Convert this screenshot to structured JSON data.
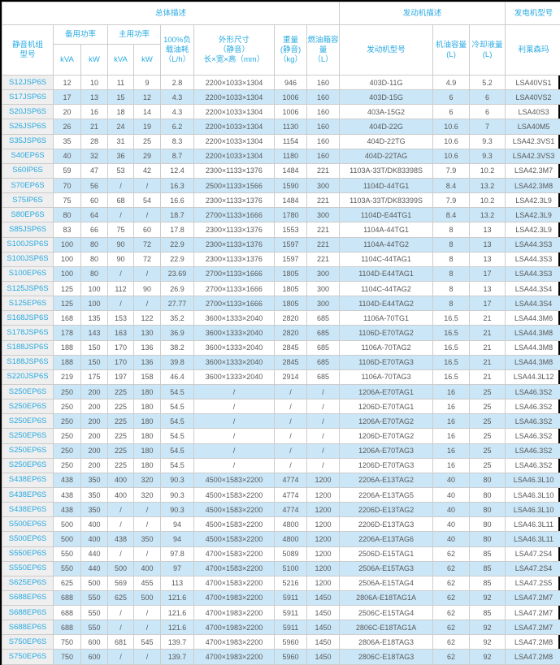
{
  "colors": {
    "accent_text": "#29aae1",
    "stripe_row": "#cbe7f7",
    "data_text": "#58595b",
    "model_column_bg": "#efefef",
    "border": "#cccccc"
  },
  "header": {
    "group_overall": "总体描述",
    "group_engine": "发动机描述",
    "group_alternator": "发电机型号",
    "col_model": "静音机组\n型号",
    "col_standby_power": "备用功率",
    "col_prime_power": "主用功率",
    "unit_kva_standby": "kVA",
    "unit_kw_standby": "kW",
    "unit_kva_prime": "kVA",
    "unit_kw_prime": "kW",
    "col_fuel_consumption": "100%负\n载油耗\n（L/h）",
    "col_dimensions": "外形尺寸\n（静音）\n长×宽×高（mm）",
    "col_weight": "重量\n(静音)\n（kg）",
    "col_fuel_tank": "燃油箱容\n量\n（L）",
    "col_engine_model": "发动机型号",
    "col_oil_capacity": "机油容量\n(L)",
    "col_coolant_capacity": "冷却液量\n(L)",
    "col_alternator_brand": "利莱森玛"
  },
  "table": {
    "column_keys": [
      "model",
      "standby_kva",
      "standby_kw",
      "prime_kva",
      "prime_kw",
      "fuel_lph",
      "dimensions_mm",
      "weight_kg",
      "tank_l",
      "engine_model",
      "oil_l",
      "coolant_l",
      "alternator"
    ],
    "rows": [
      [
        "S12JSP6S",
        "12",
        "10",
        "11",
        "9",
        "2.8",
        "2200×1033×1304",
        "946",
        "160",
        "403D-11G",
        "4.9",
        "5.2",
        "LSA40VS1"
      ],
      [
        "S17JSP6S",
        "17",
        "13",
        "15",
        "12",
        "4.3",
        "2200×1033×1304",
        "1006",
        "160",
        "403D-15G",
        "6",
        "6",
        "LSA40VS2"
      ],
      [
        "S20JSP6S",
        "20",
        "16",
        "18",
        "14",
        "4.3",
        "2200×1033×1304",
        "1006",
        "160",
        "403A-15G2",
        "6",
        "6",
        "LSA40S3"
      ],
      [
        "S26JSP6S",
        "26",
        "21",
        "24",
        "19",
        "6.2",
        "2200×1033×1304",
        "1130",
        "160",
        "404D-22G",
        "10.6",
        "7",
        "LSA40M5"
      ],
      [
        "S35JSP6S",
        "35",
        "28",
        "31",
        "25",
        "8.3",
        "2200×1033×1304",
        "1154",
        "160",
        "404D-22TG",
        "10.6",
        "9.3",
        "LSA42.3VS1"
      ],
      [
        "S40EP6S",
        "40",
        "32",
        "36",
        "29",
        "8.7",
        "2200×1033×1304",
        "1180",
        "160",
        "404D-22TAG",
        "10.6",
        "9.3",
        "LSA42.3VS3"
      ],
      [
        "S60IP6S",
        "59",
        "47",
        "53",
        "42",
        "12.4",
        "2300×1133×1376",
        "1484",
        "221",
        "1103A-33T/DK83398S",
        "7.9",
        "10.2",
        "LSA42.3M7"
      ],
      [
        "S70EP6S",
        "70",
        "56",
        "/",
        "/",
        "16.3",
        "2500×1133×1566",
        "1590",
        "300",
        "1104D-44TG1",
        "8.4",
        "13.2",
        "LSA42.3M8"
      ],
      [
        "S75IP6S",
        "75",
        "60",
        "68",
        "54",
        "16.6",
        "2300×1133×1376",
        "1484",
        "221",
        "1103A-33T/DK83399S",
        "7.9",
        "10.2",
        "LSA42.3L9"
      ],
      [
        "S80EP6S",
        "80",
        "64",
        "/",
        "/",
        "18.7",
        "2700×1133×1666",
        "1780",
        "300",
        "1104D-E44TG1",
        "8.4",
        "13.2",
        "LSA42.3L9"
      ],
      [
        "S85JSP6S",
        "83",
        "66",
        "75",
        "60",
        "17.8",
        "2300×1133×1376",
        "1553",
        "221",
        "1104A-44TG1",
        "8",
        "13",
        "LSA42.3L9"
      ],
      [
        "S100JSP6S",
        "100",
        "80",
        "90",
        "72",
        "22.9",
        "2300×1133×1376",
        "1597",
        "221",
        "1104A-44TG2",
        "8",
        "13",
        "LSA44.3S3"
      ],
      [
        "S100JSP6S",
        "100",
        "80",
        "90",
        "72",
        "22.9",
        "2300×1133×1376",
        "1597",
        "221",
        "1104C-44TAG1",
        "8",
        "13",
        "LSA44.3S3"
      ],
      [
        "S100EP6S",
        "100",
        "80",
        "/",
        "/",
        "23.69",
        "2700×1133×1666",
        "1805",
        "300",
        "1104D-E44TAG1",
        "8",
        "17",
        "LSA44.3S3"
      ],
      [
        "S125JSP6S",
        "125",
        "100",
        "112",
        "90",
        "26.9",
        "2700×1133×1666",
        "1805",
        "300",
        "1104C-44TAG2",
        "8",
        "13",
        "LSA44.3S4"
      ],
      [
        "S125EP6S",
        "125",
        "100",
        "/",
        "/",
        "27.77",
        "2700×1133×1666",
        "1805",
        "300",
        "1104D-E44TAG2",
        "8",
        "17",
        "LSA44.3S4"
      ],
      [
        "S168JSP6S",
        "168",
        "135",
        "153",
        "122",
        "35.2",
        "3600×1333×2040",
        "2820",
        "685",
        "1106A-70TG1",
        "16.5",
        "21",
        "LSA44.3M6"
      ],
      [
        "S178JSP6S",
        "178",
        "143",
        "163",
        "130",
        "36.9",
        "3600×1333×2040",
        "2820",
        "685",
        "1106D-E70TAG2",
        "16.5",
        "21",
        "LSA44.3M8"
      ],
      [
        "S188JSP6S",
        "188",
        "150",
        "170",
        "136",
        "38.2",
        "3600×1333×2040",
        "2845",
        "685",
        "1106A-70TAG2",
        "16.5",
        "21",
        "LSA44.3M8"
      ],
      [
        "S188JSP6S",
        "188",
        "150",
        "170",
        "136",
        "39.8",
        "3600×1333×2040",
        "2845",
        "685",
        "1106D-E70TAG3",
        "16.5",
        "21",
        "LSA44.3M8"
      ],
      [
        "S220JSP6S",
        "219",
        "175",
        "197",
        "158",
        "46.4",
        "3600×1333×2040",
        "2914",
        "685",
        "1106A-70TAG3",
        "16.5",
        "21",
        "LSA44.3L12"
      ],
      [
        "S250EP6S",
        "250",
        "200",
        "225",
        "180",
        "54.5",
        "/",
        "/",
        "/",
        "1206A-E70TAG1",
        "16",
        "25",
        "LSA46.3S2"
      ],
      [
        "S250EP6S",
        "250",
        "200",
        "225",
        "180",
        "54.5",
        "/",
        "/",
        "/",
        "1206D-E70TAG1",
        "16",
        "25",
        "LSA46.3S2"
      ],
      [
        "S250EP6S",
        "250",
        "200",
        "225",
        "180",
        "54.5",
        "/",
        "/",
        "/",
        "1206A-E70TAG2",
        "16",
        "25",
        "LSA46.3S2"
      ],
      [
        "S250EP6S",
        "250",
        "200",
        "225",
        "180",
        "54.5",
        "/",
        "/",
        "/",
        "1206D-E70TAG2",
        "16",
        "25",
        "LSA46.3S2"
      ],
      [
        "S250EP6S",
        "250",
        "200",
        "225",
        "180",
        "54.5",
        "/",
        "/",
        "/",
        "1206A-E70TAG3",
        "16",
        "25",
        "LSA46.3S2"
      ],
      [
        "S250EP6S",
        "250",
        "200",
        "225",
        "180",
        "54.5",
        "/",
        "/",
        "/",
        "1206D-E70TAG3",
        "16",
        "25",
        "LSA46.3S2"
      ],
      [
        "S438EP6S",
        "438",
        "350",
        "400",
        "320",
        "90.3",
        "4500×1583×2200",
        "4774",
        "1200",
        "2206A-E13TAG2",
        "40",
        "80",
        "LSA46.3L10"
      ],
      [
        "S438EP6S",
        "438",
        "350",
        "400",
        "320",
        "90.3",
        "4500×1583×2200",
        "4774",
        "1200",
        "2206A-E13TAG5",
        "40",
        "80",
        "LSA46.3L10"
      ],
      [
        "S438EP6S",
        "438",
        "350",
        "/",
        "/",
        "90.3",
        "4500×1583×2200",
        "4774",
        "1200",
        "2206D-E13TAG2",
        "40",
        "80",
        "LSA46.3L10"
      ],
      [
        "S500EP6S",
        "500",
        "400",
        "/",
        "/",
        "94",
        "4500×1583×2200",
        "4800",
        "1200",
        "2206D-E13TAG3",
        "40",
        "80",
        "LSA46.3L11"
      ],
      [
        "S500EP6S",
        "500",
        "400",
        "438",
        "350",
        "94",
        "4500×1583×2200",
        "4800",
        "1200",
        "2206A-E13TAG6",
        "40",
        "80",
        "LSA46.3L11"
      ],
      [
        "S550EP6S",
        "550",
        "440",
        "/",
        "/",
        "97.8",
        "4700×1583×2200",
        "5089",
        "1200",
        "2506D-E15TAG1",
        "62",
        "85",
        "LSA47.2S4"
      ],
      [
        "S550EP6S",
        "550",
        "440",
        "500",
        "400",
        "97",
        "4700×1583×2200",
        "5100",
        "1200",
        "2506A-E15TAG3",
        "62",
        "85",
        "LSA47.2S4"
      ],
      [
        "S625EP6S",
        "625",
        "500",
        "569",
        "455",
        "113",
        "4700×1583×2200",
        "5216",
        "1200",
        "2506A-E15TAG4",
        "62",
        "85",
        "LSA47.2S5"
      ],
      [
        "S688EP6S",
        "688",
        "550",
        "625",
        "500",
        "121.6",
        "4700×1983×2200",
        "5911",
        "1450",
        "2806A-E18TAG1A",
        "62",
        "92",
        "LSA47.2M7"
      ],
      [
        "S688EP6S",
        "688",
        "550",
        "/",
        "/",
        "121.6",
        "4700×1983×2200",
        "5911",
        "1450",
        "2506C-E15TAG4",
        "62",
        "85",
        "LSA47.2M7"
      ],
      [
        "S688EP6S",
        "688",
        "550",
        "/",
        "/",
        "121.6",
        "4700×1983×2200",
        "5911",
        "1450",
        "2806C-E18TAG1A",
        "62",
        "92",
        "LSA47.2M7"
      ],
      [
        "S750EP6S",
        "750",
        "600",
        "681",
        "545",
        "139.7",
        "4700×1983×2200",
        "5960",
        "1450",
        "2806A-E18TAG3",
        "62",
        "92",
        "LSA47.2M8"
      ],
      [
        "S750EP6S",
        "750",
        "600",
        "/",
        "/",
        "139.7",
        "4700×1983×2200",
        "5960",
        "1450",
        "2806C-E18TAG3",
        "62",
        "92",
        "LSA47.2M8"
      ]
    ]
  }
}
